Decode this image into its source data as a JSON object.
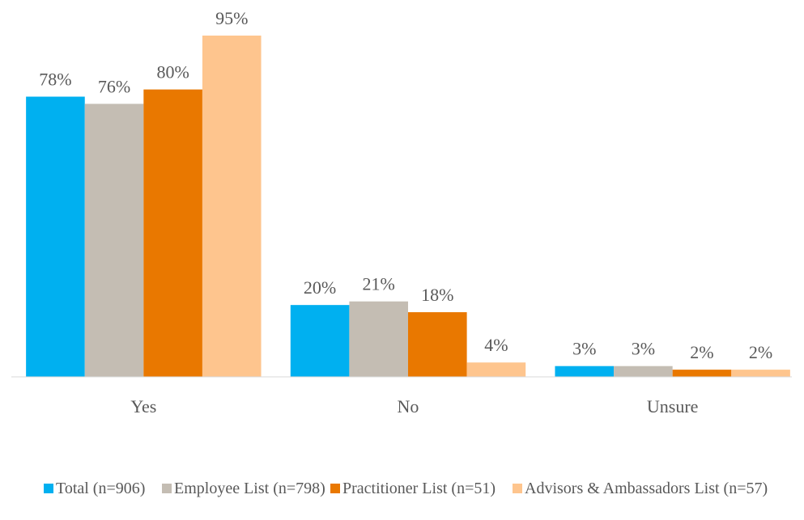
{
  "chart_data": {
    "type": "bar",
    "categories": [
      "Yes",
      "No",
      "Unsure"
    ],
    "series": [
      {
        "name": "Total (n=906)",
        "color": "#00b0f0",
        "values": [
          78,
          20,
          3
        ],
        "value_labels": [
          "78%",
          "20%",
          "3%"
        ]
      },
      {
        "name": "Employee List (n=798)",
        "color": "#c4bdb3",
        "values": [
          76,
          21,
          3
        ],
        "value_labels": [
          "76%",
          "21%",
          "3%"
        ]
      },
      {
        "name": "Practitioner List (n=51)",
        "color": "#e97800",
        "values": [
          80,
          18,
          2
        ],
        "value_labels": [
          "80%",
          "18%",
          "2%"
        ]
      },
      {
        "name": "Advisors & Ambassadors List (n=57)",
        "color": "#fec58e",
        "values": [
          95,
          4,
          2
        ],
        "value_labels": [
          "95%",
          "4%",
          "2%"
        ]
      }
    ]
  }
}
